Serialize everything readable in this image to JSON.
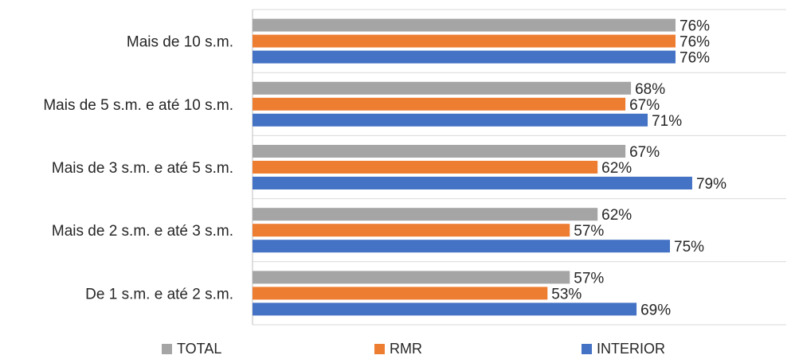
{
  "chart_data": {
    "type": "bar",
    "orientation": "horizontal",
    "categories": [
      "Mais de 10 s.m.",
      "Mais de 5 s.m. e até 10 s.m.",
      "Mais de 3 s.m. e até 5 s.m.",
      "Mais de 2 s.m. e até 3 s.m.",
      "De 1 s.m. e até 2 s.m."
    ],
    "series": [
      {
        "name": "TOTAL",
        "color": "#a5a5a5",
        "values": [
          76,
          68,
          67,
          62,
          57
        ],
        "labels": [
          "76%",
          "68%",
          "67%",
          "62%",
          "57%"
        ]
      },
      {
        "name": "RMR",
        "color": "#ed7d31",
        "values": [
          76,
          67,
          62,
          57,
          53
        ],
        "labels": [
          "76%",
          "67%",
          "62%",
          "57%",
          "53%"
        ]
      },
      {
        "name": "INTERIOR",
        "color": "#4472c4",
        "values": [
          76,
          71,
          79,
          75,
          69
        ],
        "labels": [
          "76%",
          "71%",
          "79%",
          "75%",
          "69%"
        ]
      }
    ],
    "xlim": [
      0,
      100
    ],
    "grid": false,
    "legend_position": "bottom",
    "value_format": "percent"
  }
}
